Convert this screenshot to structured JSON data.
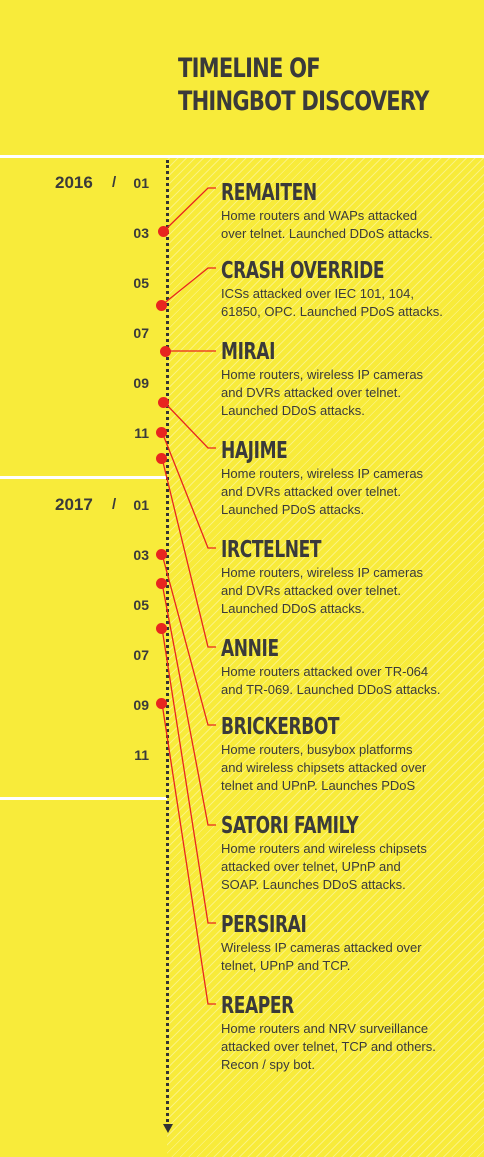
{
  "title_line1": "TIMELINE OF",
  "title_line2": "THINGBOT DISCOVERY",
  "years": [
    {
      "label": "2016",
      "slash": "/",
      "first_month": "01"
    },
    {
      "label": "2017",
      "slash": "/",
      "first_month": "01"
    }
  ],
  "months_2016": [
    "03",
    "05",
    "07",
    "09",
    "11"
  ],
  "months_2017": [
    "03",
    "05",
    "07",
    "09",
    "11"
  ],
  "entries": [
    {
      "name": "REMAITEN",
      "desc": "Home routers and WAPs attacked\nover telnet. Launched DDoS attacks."
    },
    {
      "name": "CRASH OVERRIDE",
      "desc": "ICSs attacked over IEC 101, 104,\n61850, OPC. Launched PDoS attacks."
    },
    {
      "name": "MIRAI",
      "desc": "Home routers, wireless IP cameras\nand DVRs attacked over telnet.\nLaunched DDoS attacks."
    },
    {
      "name": "HAJIME",
      "desc": "Home routers, wireless IP cameras\nand DVRs attacked over telnet.\nLaunched PDoS attacks."
    },
    {
      "name": "IRCTELNET",
      "desc": "Home routers, wireless IP cameras\nand DVRs attacked over telnet.\nLaunched DDoS attacks."
    },
    {
      "name": "ANNIE",
      "desc": "Home routers attacked over TR-064\nand TR-069. Launched DDoS attacks."
    },
    {
      "name": "BRICKERBOT",
      "desc": "Home routers, busybox platforms\nand wireless chipsets attacked over\ntelnet and UPnP. Launches PDoS"
    },
    {
      "name": "SATORI FAMILY",
      "desc": "Home routers and wireless chipsets\nattacked over telnet, UPnP and\nSOAP. Launches DDoS attacks."
    },
    {
      "name": "PERSIRAI",
      "desc": "Wireless IP cameras attacked over\ntelnet, UPnP and TCP."
    },
    {
      "name": "REAPER",
      "desc": "Home routers and NRV surveillance\nattacked over telnet, TCP and others.\nRecon / spy bot."
    }
  ]
}
